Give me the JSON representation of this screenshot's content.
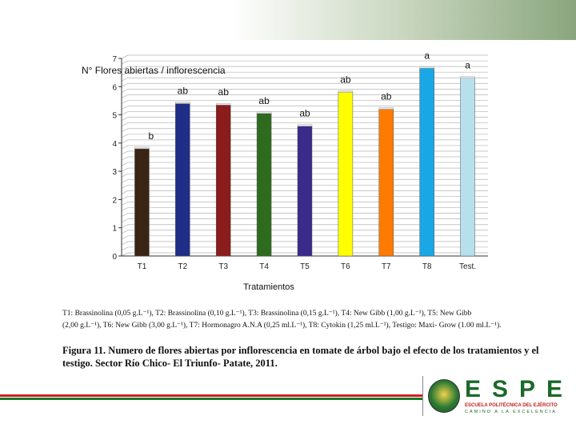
{
  "chart_data": {
    "type": "bar",
    "title": "N° Flores abiertas / inflorescencia",
    "xlabel": "Tratamientos",
    "ylabel": "",
    "ylim": [
      0,
      7
    ],
    "yticks": [
      "0",
      "1",
      "2",
      "3",
      "4",
      "5",
      "6",
      "7"
    ],
    "grid": true,
    "categories": [
      "T1",
      "T2",
      "T3",
      "T4",
      "T5",
      "T6",
      "T7",
      "T8",
      "Test."
    ],
    "values": [
      3.8,
      5.4,
      5.35,
      5.05,
      4.6,
      5.8,
      5.2,
      6.65,
      6.3
    ],
    "significance": [
      "b",
      "ab",
      "ab",
      "ab",
      "ab",
      "ab",
      "ab",
      "a",
      "a"
    ],
    "colors": [
      "#3a2413",
      "#1f2f88",
      "#8a1c1c",
      "#2f6b1f",
      "#3a2a8a",
      "#ffff00",
      "#ff7a00",
      "#19a7e6",
      "#b8e0ec"
    ]
  },
  "notes": {
    "line1": "T1: Brassinolina (0,05 g.L⁻¹),  T2: Brassinolina (0,10 g.L⁻¹),  T3: Brassinolina (0,15 g.L⁻¹),  T4: New Gibb (1,00 g.L⁻¹),  T5: New Gibb",
    "line2": "(2,00 g.L⁻¹), T6: New Gibb (3,00 g.L⁻¹), T7: Hormonagro A.N.A (0,25 ml.L⁻¹),  T8: Cytokin (1,25 ml.L⁻¹), Testigo: Maxi- Grow (1.00 ml.L⁻¹)."
  },
  "figure": {
    "caption": "Figura 11. Numero de flores abiertas por inflorescencia en tomate de árbol bajo el efecto de los tratamientos y el testigo. Sector  Río Chico- El Triunfo- Patate, 2011."
  },
  "logo": {
    "name": "ESPE",
    "subtitle": "ESCUELA POLITÉCNICA DEL EJÉRCITO",
    "motto": "CAMINO A LA EXCELENCIA"
  }
}
